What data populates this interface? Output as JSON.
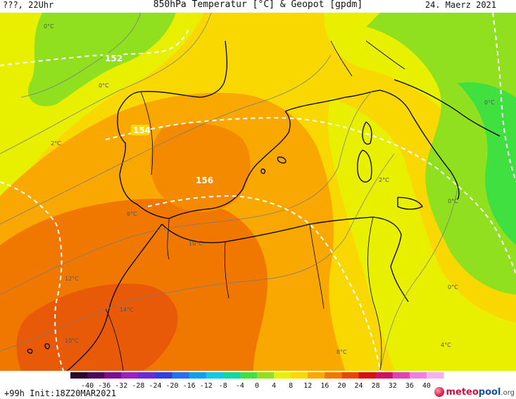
{
  "header": {
    "left": "???, 22Uhr",
    "title": "850hPa Temperatur [°C] & Geopot [gpdm]",
    "date": "24. Maerz 2021"
  },
  "footer": {
    "init": "+99h Init:18Z20MAR2021",
    "logo_meteo": "meteo",
    "logo_pool": "pool",
    "logo_tld": ".org"
  },
  "colorbar": {
    "ticks": [
      "-40",
      "-36",
      "-32",
      "-28",
      "-24",
      "-20",
      "-16",
      "-12",
      "-8",
      "-4",
      "0",
      "4",
      "8",
      "12",
      "16",
      "20",
      "24",
      "28",
      "32",
      "36",
      "40"
    ],
    "colors": [
      "#2a0a2a",
      "#4a0a5a",
      "#7a1090",
      "#9a20c0",
      "#6a2ad8",
      "#3040e0",
      "#2070f0",
      "#10a0f0",
      "#10c8e8",
      "#10d8a0",
      "#40e040",
      "#90e020",
      "#e8f000",
      "#f8d800",
      "#f8a800",
      "#f07800",
      "#e84800",
      "#d81010",
      "#d01060",
      "#e040b0",
      "#f080e0",
      "#f8b0f0"
    ]
  },
  "geopot_labels": [
    {
      "id": "152",
      "text": "152"
    },
    {
      "id": "154",
      "text": "154"
    },
    {
      "id": "156",
      "text": "156"
    }
  ],
  "temp_labels": [
    {
      "id": "0a",
      "text": "0°C"
    },
    {
      "id": "0b",
      "text": "0°C"
    },
    {
      "id": "2a",
      "text": "2°C"
    },
    {
      "id": "2b",
      "text": "2°C"
    },
    {
      "id": "6a",
      "text": "6°C"
    },
    {
      "id": "10a",
      "text": "10°C"
    },
    {
      "id": "12a",
      "text": "12°C"
    },
    {
      "id": "14a",
      "text": "14°C"
    },
    {
      "id": "10b",
      "text": "10°C"
    },
    {
      "id": "8a",
      "text": "8°C"
    },
    {
      "id": "4a",
      "text": "4°C"
    },
    {
      "id": "0c",
      "text": "0°C"
    },
    {
      "id": "0d",
      "text": "0°C"
    },
    {
      "id": "0e",
      "text": "0°C"
    }
  ],
  "colors": {
    "coast": "#000000",
    "geopot": "#ffffff",
    "isotherm": "#7a7a7a"
  }
}
